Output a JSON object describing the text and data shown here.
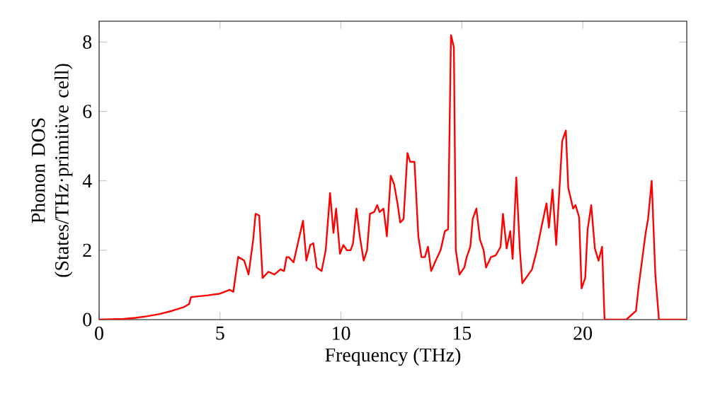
{
  "chart_data": {
    "type": "line",
    "xlabel": "Frequency (THz)",
    "ylabel": "Phonon DOS (States/THz·primitive cell)",
    "xlim": [
      0,
      24.3
    ],
    "ylim": [
      0,
      8.6
    ],
    "xticks": [
      0,
      5,
      10,
      15,
      20
    ],
    "yticks": [
      0,
      2,
      4,
      6,
      8
    ],
    "series": [
      {
        "color": "#ff0000",
        "x": [
          0,
          1,
          1.5,
          2,
          2.5,
          3,
          3.5,
          3.72,
          3.8,
          4.5,
          5,
          5.4,
          5.55,
          5.75,
          6.0,
          6.18,
          6.37,
          6.47,
          6.62,
          6.76,
          7.0,
          7.25,
          7.5,
          7.65,
          7.75,
          7.84,
          8.04,
          8.43,
          8.57,
          8.73,
          8.86,
          9.0,
          9.2,
          9.37,
          9.55,
          9.69,
          9.8,
          9.96,
          10.1,
          10.25,
          10.4,
          10.5,
          10.64,
          10.78,
          10.94,
          11.08,
          11.2,
          11.37,
          11.5,
          11.6,
          11.76,
          11.9,
          12.06,
          12.2,
          12.35,
          12.45,
          12.59,
          12.75,
          12.86,
          13.04,
          13.2,
          13.33,
          13.47,
          13.6,
          13.73,
          13.92,
          14.12,
          14.3,
          14.43,
          14.55,
          14.67,
          14.75,
          14.9,
          15.1,
          15.2,
          15.35,
          15.45,
          15.6,
          15.75,
          15.9,
          16.0,
          16.2,
          16.4,
          16.6,
          16.7,
          16.85,
          17.0,
          17.1,
          17.25,
          17.4,
          17.5,
          17.7,
          17.9,
          18.1,
          18.3,
          18.5,
          18.6,
          18.75,
          18.9,
          19.15,
          19.3,
          19.4,
          19.6,
          19.7,
          19.85,
          19.95,
          20.1,
          20.2,
          20.35,
          20.5,
          20.65,
          20.8,
          20.9,
          21.8,
          22.2,
          22.3,
          22.6,
          22.7,
          22.85,
          23.0,
          23.15,
          24.3
        ],
        "values": [
          0,
          0.02,
          0.05,
          0.1,
          0.16,
          0.25,
          0.36,
          0.45,
          0.65,
          0.7,
          0.75,
          0.86,
          0.8,
          1.81,
          1.7,
          1.3,
          2.3,
          3.05,
          3.0,
          1.2,
          1.38,
          1.3,
          1.45,
          1.4,
          1.8,
          1.8,
          1.65,
          2.85,
          1.7,
          2.15,
          2.2,
          1.5,
          1.4,
          2.0,
          3.65,
          2.5,
          3.2,
          1.9,
          2.15,
          2.0,
          2.0,
          2.2,
          3.2,
          2.4,
          1.7,
          2.0,
          3.05,
          3.1,
          3.3,
          3.1,
          3.2,
          2.4,
          4.15,
          3.9,
          3.3,
          2.8,
          2.9,
          4.8,
          4.55,
          4.55,
          2.4,
          1.8,
          1.8,
          2.1,
          1.4,
          1.7,
          2.0,
          2.55,
          2.6,
          8.2,
          7.85,
          2.0,
          1.3,
          1.5,
          1.8,
          2.1,
          2.9,
          3.2,
          2.3,
          2.0,
          1.5,
          1.8,
          1.85,
          2.1,
          3.05,
          2.05,
          2.55,
          1.75,
          4.1,
          2.0,
          1.05,
          1.25,
          1.45,
          2.0,
          2.7,
          3.35,
          2.65,
          3.75,
          2.15,
          5.15,
          5.45,
          3.8,
          3.2,
          3.3,
          2.95,
          0.9,
          1.2,
          2.6,
          3.3,
          2.05,
          1.7,
          2.1,
          0,
          0,
          0.25,
          0.9,
          2.5,
          2.9,
          4.0,
          1.3,
          0,
          0
        ]
      }
    ]
  }
}
